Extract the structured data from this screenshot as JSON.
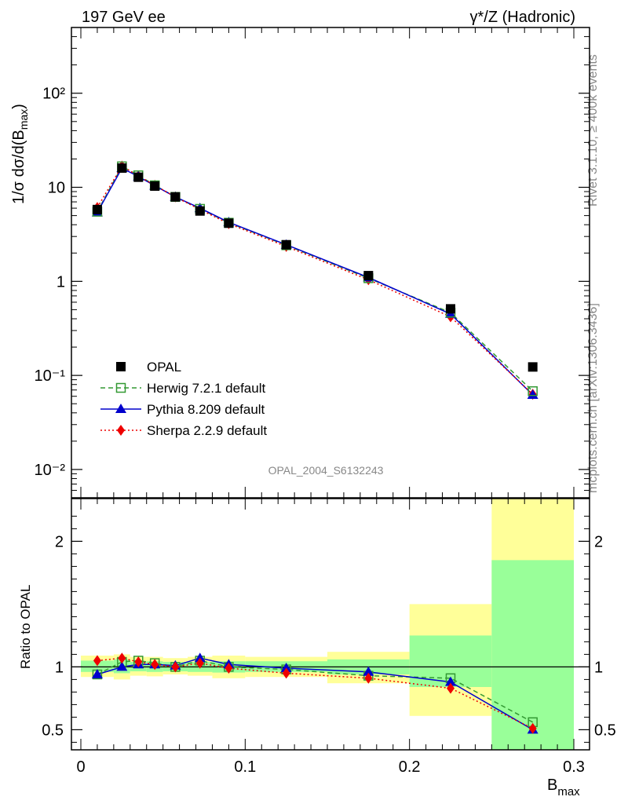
{
  "header": {
    "left_title": "197 GeV ee",
    "right_title": "γ*/Z (Hadronic)"
  },
  "side_text": {
    "rivet": "Rivet 3.1.10, ≥ 400k events",
    "mcplots": "mcplots.cern.ch [arXiv:1306.3436]"
  },
  "analysis_label": "OPAL_2004_S6132243",
  "chart_data": [
    {
      "type": "scatter",
      "panel": "main",
      "ylabel": "1/σ dσ/d(Bmax)",
      "xlabel": "Bmax",
      "xlim": [
        0,
        0.3
      ],
      "ylim": [
        0.005,
        500
      ],
      "yscale": "log",
      "legend": {
        "placement": "lower-left",
        "entries": [
          "OPAL",
          "Herwig 7.2.1 default",
          "Pythia 8.209 default",
          "Sherpa 2.2.9 default"
        ]
      },
      "x": [
        0.01,
        0.025,
        0.035,
        0.045,
        0.0575,
        0.0725,
        0.09,
        0.125,
        0.175,
        0.225,
        0.275
      ],
      "series": [
        {
          "name": "OPAL",
          "color": "#000000",
          "marker": "filled-square",
          "line": "none",
          "values": [
            5.8,
            16.0,
            12.8,
            10.3,
            7.9,
            5.6,
            4.15,
            2.45,
            1.15,
            0.51,
            0.123
          ]
        },
        {
          "name": "Herwig 7.2.1 default",
          "color": "#339933",
          "marker": "open-square",
          "line": "dashed",
          "values": [
            5.5,
            16.7,
            13.4,
            10.5,
            7.9,
            5.9,
            4.2,
            2.42,
            1.08,
            0.465,
            0.068
          ]
        },
        {
          "name": "Pythia 8.209 default",
          "color": "#0000cc",
          "marker": "filled-triangle",
          "line": "solid",
          "values": [
            5.4,
            16.0,
            13.0,
            10.4,
            7.9,
            6.0,
            4.25,
            2.45,
            1.1,
            0.45,
            0.062
          ]
        },
        {
          "name": "Sherpa 2.2.9 default",
          "color": "#ee0000",
          "marker": "filled-diamond",
          "line": "dotted",
          "values": [
            6.1,
            16.8,
            13.2,
            10.5,
            7.9,
            5.8,
            4.1,
            2.35,
            1.04,
            0.42,
            0.063
          ]
        }
      ],
      "yticks": [
        "10⁻²",
        "10⁻¹",
        "1",
        "10",
        "10²"
      ]
    },
    {
      "type": "line",
      "panel": "ratio",
      "ylabel": "Ratio to OPAL",
      "xlabel": "Bmax",
      "xlim": [
        0,
        0.3
      ],
      "ylim": [
        0.34,
        2.34
      ],
      "xticks": [
        "0",
        "0.1",
        "0.2",
        "0.3"
      ],
      "yticks": [
        "0.5",
        "1",
        "2"
      ],
      "bins": [
        {
          "lo": 0.0,
          "hi": 0.02,
          "green": [
            0.96,
            1.05
          ],
          "yellow": [
            0.92,
            1.09
          ]
        },
        {
          "lo": 0.02,
          "hi": 0.03,
          "green": [
            0.95,
            1.06
          ],
          "yellow": [
            0.9,
            1.1
          ]
        },
        {
          "lo": 0.03,
          "hi": 0.04,
          "green": [
            0.965,
            1.04
          ],
          "yellow": [
            0.93,
            1.08
          ]
        },
        {
          "lo": 0.04,
          "hi": 0.05,
          "green": [
            0.96,
            1.045
          ],
          "yellow": [
            0.925,
            1.08
          ]
        },
        {
          "lo": 0.05,
          "hi": 0.065,
          "green": [
            0.965,
            1.04
          ],
          "yellow": [
            0.94,
            1.07
          ]
        },
        {
          "lo": 0.065,
          "hi": 0.08,
          "green": [
            0.96,
            1.04
          ],
          "yellow": [
            0.93,
            1.08
          ]
        },
        {
          "lo": 0.08,
          "hi": 0.1,
          "green": [
            0.955,
            1.045
          ],
          "yellow": [
            0.91,
            1.09
          ]
        },
        {
          "lo": 0.1,
          "hi": 0.15,
          "green": [
            0.96,
            1.045
          ],
          "yellow": [
            0.92,
            1.08
          ]
        },
        {
          "lo": 0.15,
          "hi": 0.2,
          "green": [
            0.94,
            1.06
          ],
          "yellow": [
            0.87,
            1.12
          ]
        },
        {
          "lo": 0.2,
          "hi": 0.25,
          "green": [
            0.84,
            1.25
          ],
          "yellow": [
            0.61,
            1.5
          ]
        },
        {
          "lo": 0.25,
          "hi": 0.3,
          "green": [
            0.34,
            1.85
          ],
          "yellow": [
            0.34,
            2.34
          ]
        }
      ],
      "x": [
        0.01,
        0.025,
        0.035,
        0.045,
        0.0575,
        0.0725,
        0.09,
        0.125,
        0.175,
        0.225,
        0.275
      ],
      "series": [
        {
          "name": "Herwig 7.2.1 default",
          "color": "#339933",
          "marker": "open-square",
          "line": "dashed",
          "values": [
            0.94,
            1.04,
            1.05,
            1.03,
            1.0,
            1.05,
            1.0,
            0.98,
            0.93,
            0.91,
            0.56
          ]
        },
        {
          "name": "Pythia 8.209 default",
          "color": "#0000cc",
          "marker": "filled-triangle",
          "line": "solid",
          "values": [
            0.94,
            1.0,
            1.02,
            1.02,
            1.01,
            1.07,
            1.02,
            0.99,
            0.96,
            0.88,
            0.5
          ]
        },
        {
          "name": "Sherpa 2.2.9 default",
          "color": "#ee0000",
          "marker": "filled-diamond",
          "line": "dotted",
          "values": [
            1.05,
            1.07,
            1.04,
            1.02,
            1.0,
            1.03,
            0.99,
            0.95,
            0.91,
            0.83,
            0.51
          ]
        }
      ]
    }
  ]
}
